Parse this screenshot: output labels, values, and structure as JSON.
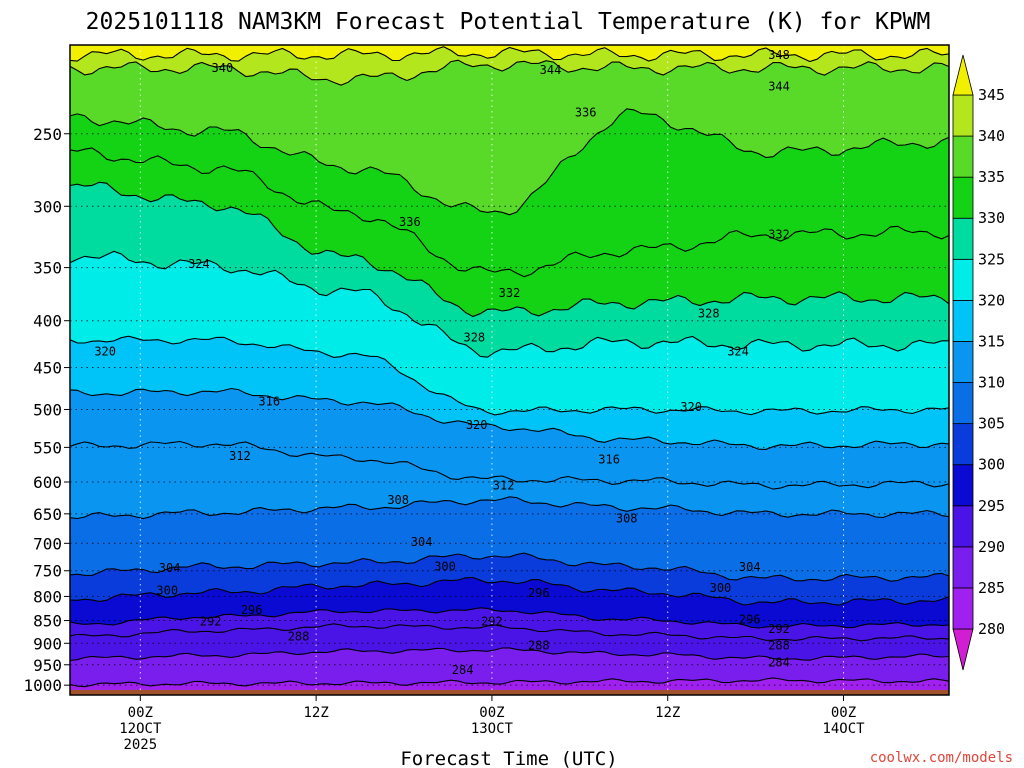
{
  "chart_data": {
    "type": "heatmap",
    "title": "2025101118 NAM3KM Forecast Potential Temperature (K) for KPWM",
    "xlabel": "Forecast Time (UTC)",
    "ylabel": "",
    "x_range_hours": [
      -6,
      69
    ],
    "y_range_hpa": [
      200,
      1025
    ],
    "x_ticks": [
      {
        "hour": 0,
        "lines": [
          "00Z",
          "12OCT",
          "2025"
        ]
      },
      {
        "hour": 15,
        "lines": [
          "12Z"
        ]
      },
      {
        "hour": 30,
        "lines": [
          "00Z",
          "13OCT"
        ]
      },
      {
        "hour": 45,
        "lines": [
          "12Z"
        ]
      },
      {
        "hour": 60,
        "lines": [
          "00Z",
          "14OCT"
        ]
      }
    ],
    "y_ticks": [
      250,
      300,
      350,
      400,
      450,
      500,
      550,
      600,
      650,
      700,
      750,
      800,
      850,
      900,
      950,
      1000
    ],
    "colorbar": {
      "ticks": [
        345,
        340,
        335,
        330,
        325,
        320,
        315,
        310,
        305,
        300,
        295,
        290,
        285,
        280
      ],
      "bands": [
        {
          "lo": 275,
          "hi": 280,
          "color": "#d21ed2"
        },
        {
          "lo": 280,
          "hi": 285,
          "color": "#a020f0"
        },
        {
          "lo": 285,
          "hi": 290,
          "color": "#7a1eee"
        },
        {
          "lo": 290,
          "hi": 295,
          "color": "#4b14e6"
        },
        {
          "lo": 295,
          "hi": 300,
          "color": "#0a0ad2"
        },
        {
          "lo": 300,
          "hi": 305,
          "color": "#0a3cdc"
        },
        {
          "lo": 305,
          "hi": 310,
          "color": "#0a6ee6"
        },
        {
          "lo": 310,
          "hi": 315,
          "color": "#0a96f0"
        },
        {
          "lo": 315,
          "hi": 320,
          "color": "#00c4f8"
        },
        {
          "lo": 320,
          "hi": 325,
          "color": "#00ece8"
        },
        {
          "lo": 325,
          "hi": 330,
          "color": "#00dca0"
        },
        {
          "lo": 330,
          "hi": 335,
          "color": "#14d214"
        },
        {
          "lo": 335,
          "hi": 340,
          "color": "#5ada28"
        },
        {
          "lo": 340,
          "hi": 345,
          "color": "#b4e61e"
        },
        {
          "lo": 345,
          "hi": 350,
          "color": "#f0f000"
        }
      ]
    },
    "contour_lines": [
      {
        "theta": 284,
        "pressure_at_hours": [
          998,
          996,
          995,
          993,
          990,
          988,
          990
        ]
      },
      {
        "theta": 288,
        "pressure_at_hours": [
          935,
          928,
          918,
          915,
          925,
          935,
          930
        ]
      },
      {
        "theta": 292,
        "pressure_at_hours": [
          885,
          872,
          862,
          865,
          880,
          890,
          888
        ]
      },
      {
        "theta": 296,
        "pressure_at_hours": [
          858,
          842,
          830,
          828,
          848,
          862,
          858
        ]
      },
      {
        "theta": 300,
        "pressure_at_hours": [
          805,
          792,
          778,
          768,
          790,
          812,
          808
        ]
      },
      {
        "theta": 304,
        "pressure_at_hours": [
          755,
          742,
          735,
          722,
          742,
          765,
          762
        ]
      },
      {
        "theta": 308,
        "pressure_at_hours": [
          655,
          648,
          640,
          628,
          640,
          650,
          650
        ]
      },
      {
        "theta": 312,
        "pressure_at_hours": [
          548,
          545,
          565,
          596,
          598,
          605,
          602
        ]
      },
      {
        "theta": 316,
        "pressure_at_hours": [
          480,
          478,
          490,
          522,
          540,
          548,
          545
        ]
      },
      {
        "theta": 320,
        "pressure_at_hours": [
          420,
          420,
          435,
          502,
          500,
          502,
          500
        ]
      },
      {
        "theta": 324,
        "pressure_at_hours": [
          340,
          348,
          372,
          432,
          422,
          425,
          425
        ]
      },
      {
        "theta": 328,
        "pressure_at_hours": [
          285,
          298,
          342,
          392,
          382,
          378,
          378
        ]
      },
      {
        "theta": 332,
        "pressure_at_hours": [
          262,
          272,
          305,
          355,
          335,
          322,
          320
        ]
      },
      {
        "theta": 336,
        "pressure_at_hours": [
          240,
          248,
          272,
          305,
          238,
          262,
          255
        ]
      },
      {
        "theta": 340,
        "pressure_at_hours": [
          212,
          212,
          218,
          210,
          212,
          212,
          212
        ]
      },
      {
        "theta": 344,
        "pressure_at_hours": [
          205,
          205,
          205,
          204,
          205,
          205,
          205
        ]
      }
    ],
    "contour_labels": [
      {
        "text": "340",
        "hour": 7,
        "hpa": 212
      },
      {
        "text": "344",
        "hour": 35,
        "hpa": 213
      },
      {
        "text": "348",
        "hour": 54.5,
        "hpa": 205
      },
      {
        "text": "344",
        "hour": 54.5,
        "hpa": 222
      },
      {
        "text": "336",
        "hour": 38,
        "hpa": 237
      },
      {
        "text": "336",
        "hour": 23,
        "hpa": 312
      },
      {
        "text": "332",
        "hour": 54.5,
        "hpa": 322
      },
      {
        "text": "324",
        "hour": 5,
        "hpa": 347
      },
      {
        "text": "332",
        "hour": 31.5,
        "hpa": 373
      },
      {
        "text": "328",
        "hour": 48.5,
        "hpa": 393
      },
      {
        "text": "328",
        "hour": 28.5,
        "hpa": 417
      },
      {
        "text": "320",
        "hour": -3,
        "hpa": 432
      },
      {
        "text": "324",
        "hour": 51,
        "hpa": 432
      },
      {
        "text": "316",
        "hour": 11,
        "hpa": 490
      },
      {
        "text": "320",
        "hour": 47,
        "hpa": 497
      },
      {
        "text": "320",
        "hour": 28.7,
        "hpa": 520
      },
      {
        "text": "312",
        "hour": 8.5,
        "hpa": 562
      },
      {
        "text": "316",
        "hour": 40,
        "hpa": 567
      },
      {
        "text": "312",
        "hour": 31,
        "hpa": 605
      },
      {
        "text": "308",
        "hour": 22,
        "hpa": 628
      },
      {
        "text": "308",
        "hour": 41.5,
        "hpa": 658
      },
      {
        "text": "304",
        "hour": 24,
        "hpa": 698
      },
      {
        "text": "300",
        "hour": 26,
        "hpa": 742
      },
      {
        "text": "304",
        "hour": 2.5,
        "hpa": 745
      },
      {
        "text": "304",
        "hour": 52,
        "hpa": 743
      },
      {
        "text": "300",
        "hour": 2.3,
        "hpa": 788
      },
      {
        "text": "300",
        "hour": 49.5,
        "hpa": 783
      },
      {
        "text": "296",
        "hour": 34,
        "hpa": 793
      },
      {
        "text": "296",
        "hour": 9.5,
        "hpa": 828
      },
      {
        "text": "296",
        "hour": 52,
        "hpa": 848
      },
      {
        "text": "292",
        "hour": 6,
        "hpa": 852
      },
      {
        "text": "292",
        "hour": 30,
        "hpa": 852
      },
      {
        "text": "292",
        "hour": 54.5,
        "hpa": 868
      },
      {
        "text": "288",
        "hour": 13.5,
        "hpa": 885
      },
      {
        "text": "288",
        "hour": 34,
        "hpa": 905
      },
      {
        "text": "288",
        "hour": 54.5,
        "hpa": 905
      },
      {
        "text": "284",
        "hour": 54.5,
        "hpa": 945
      },
      {
        "text": "284",
        "hour": 27.5,
        "hpa": 963
      }
    ],
    "ground_color": "#a0522d"
  },
  "credit": "coolwx.com/models"
}
